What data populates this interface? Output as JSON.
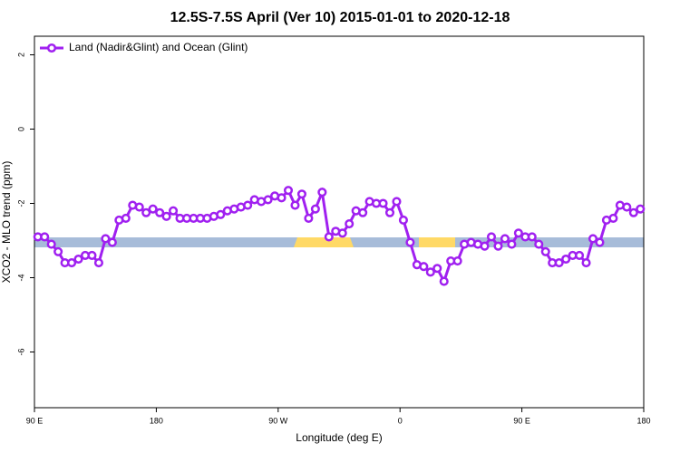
{
  "chart_data": {
    "type": "line",
    "title": "12.5S-7.5S April (Ver 10)   2015-01-01 to 2020-12-18",
    "x_label": "Longitude (deg E)",
    "y_label": "XCO2 - MLO trend (ppm)",
    "xlim": [
      90,
      540
    ],
    "xticks": [
      {
        "value": 90,
        "label": "90 E"
      },
      {
        "value": 180,
        "label": "180"
      },
      {
        "value": 270,
        "label": "90 W"
      },
      {
        "value": 360,
        "label": "0"
      },
      {
        "value": 450,
        "label": "90 E"
      },
      {
        "value": 540,
        "label": "180"
      }
    ],
    "ylim": [
      -7.5,
      2.5
    ],
    "yticks": [
      2,
      0,
      -2,
      -4,
      -6
    ],
    "legend": "top-left",
    "x": [
      92.5,
      97.5,
      102.5,
      107.5,
      112.5,
      117.5,
      122.5,
      127.5,
      132.5,
      137.5,
      142.5,
      147.5,
      152.5,
      157.5,
      162.5,
      167.5,
      172.5,
      177.5,
      182.5,
      187.5,
      192.5,
      197.5,
      202.5,
      207.5,
      212.5,
      217.5,
      222.5,
      227.5,
      232.5,
      237.5,
      242.5,
      247.5,
      252.5,
      257.5,
      262.5,
      267.5,
      272.5,
      277.5,
      282.5,
      287.5,
      292.5,
      297.5,
      302.5,
      307.5,
      312.5,
      317.5,
      322.5,
      327.5,
      332.5,
      337.5,
      342.5,
      347.5,
      352.5,
      357.5,
      362.5,
      367.5,
      372.5,
      377.5,
      382.5,
      387.5,
      392.5,
      397.5,
      402.5,
      407.5,
      412.5,
      417.5,
      422.5,
      427.5,
      432.5,
      437.5,
      442.5,
      447.5,
      452.5,
      457.5,
      462.5,
      467.5,
      472.5,
      477.5,
      482.5,
      487.5,
      492.5,
      497.5,
      502.5,
      507.5,
      512.5,
      517.5,
      522.5,
      527.5,
      532.5,
      537.5
    ],
    "series": [
      {
        "name": "Land (Nadir&Glint) and Ocean (Glint)",
        "color": "#a020f0",
        "values": [
          -2.9,
          -2.9,
          -3.1,
          -3.3,
          -3.6,
          -3.6,
          -3.5,
          -3.4,
          -3.4,
          -3.6,
          -2.95,
          -3.05,
          -2.45,
          -2.4,
          -2.05,
          -2.1,
          -2.25,
          -2.15,
          -2.25,
          -2.35,
          -2.2,
          -2.4,
          -2.4,
          -2.4,
          -2.4,
          -2.4,
          -2.35,
          -2.3,
          -2.2,
          -2.15,
          -2.1,
          -2.05,
          -1.9,
          -1.95,
          -1.9,
          -1.8,
          -1.85,
          -1.65,
          -2.05,
          -1.75,
          -2.4,
          -2.15,
          -1.7,
          -2.9,
          -2.75,
          -2.8,
          -2.55,
          -2.2,
          -2.25,
          -1.95,
          -2.0,
          -2.0,
          -2.25,
          -1.95,
          -2.45,
          -3.05,
          -3.65,
          -3.7,
          -3.85,
          -3.75,
          -4.1,
          -3.55,
          -3.55,
          -3.1,
          -3.05,
          -3.1,
          -3.15,
          -2.9,
          -3.15,
          -2.95,
          -3.1,
          -2.8,
          -2.9,
          -2.9,
          -3.1,
          -3.3,
          -3.6,
          -3.6,
          -3.5,
          -3.4,
          -3.4,
          -3.6,
          -2.95,
          -3.05,
          -2.45,
          -2.4,
          -2.05,
          -2.1,
          -2.25,
          -2.15
        ]
      }
    ]
  }
}
